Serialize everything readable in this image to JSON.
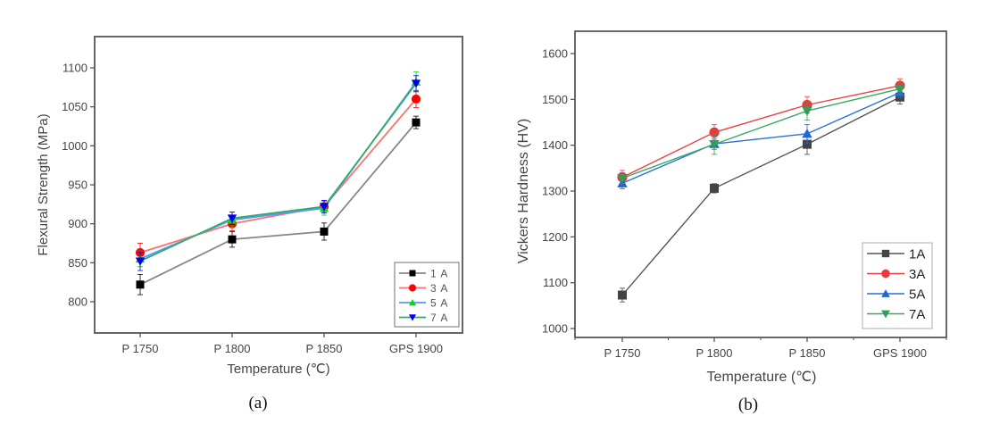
{
  "chart_data": [
    {
      "type": "line",
      "panel_label": "(a)",
      "title": "",
      "xlabel": "Temperature (℃)",
      "ylabel": "Flexural Strength (MPa)",
      "categories": [
        "P 1750",
        "P 1800",
        "P 1850",
        "GPS 1900"
      ],
      "ylim": [
        765,
        1125
      ],
      "yticks": [
        800,
        850,
        900,
        950,
        1000,
        1050,
        1100
      ],
      "grid": false,
      "legend_position": "bottom-right",
      "error_bars": true,
      "series": [
        {
          "name": "1 A",
          "marker": "square",
          "line_color": "#888888",
          "marker_color": "#000000",
          "values": [
            822,
            880,
            890,
            1030
          ],
          "errors": [
            13,
            10,
            11,
            8
          ]
        },
        {
          "name": "3 A",
          "marker": "circle",
          "line_color": "#ff7070",
          "marker_color": "#ff0000",
          "values": [
            863,
            900,
            922,
            1060
          ],
          "errors": [
            12,
            9,
            8,
            11
          ]
        },
        {
          "name": "5 A",
          "marker": "triangle-up",
          "line_color": "#5599ff",
          "marker_color": "#00dd00",
          "values": [
            855,
            905,
            920,
            1082
          ],
          "errors": [
            10,
            10,
            9,
            13
          ]
        },
        {
          "name": "7 A",
          "marker": "triangle-down",
          "line_color": "#33aa66",
          "marker_color": "#0000ee",
          "values": [
            852,
            907,
            922,
            1080
          ],
          "errors": [
            12,
            8,
            8,
            10
          ]
        }
      ]
    },
    {
      "type": "line",
      "panel_label": "(b)",
      "title": "",
      "xlabel": "Temperature (℃)",
      "ylabel": "Vickers Hardness (HV)",
      "categories": [
        "P 1750",
        "P 1800",
        "P 1850",
        "GPS 1900"
      ],
      "ylim": [
        980,
        1650
      ],
      "yticks": [
        1000,
        1100,
        1200,
        1300,
        1400,
        1500,
        1600
      ],
      "grid": false,
      "legend_position": "bottom-right",
      "error_bars": true,
      "series": [
        {
          "name": "1A",
          "marker": "square",
          "line_color": "#555555",
          "marker_color": "#444444",
          "values": [
            1073,
            1306,
            1402,
            1505
          ],
          "errors": [
            15,
            10,
            22,
            15
          ]
        },
        {
          "name": "3A",
          "marker": "circle",
          "line_color": "#e84040",
          "marker_color": "#e83a3a",
          "values": [
            1330,
            1428,
            1488,
            1530
          ],
          "errors": [
            15,
            17,
            18,
            15
          ]
        },
        {
          "name": "5A",
          "marker": "triangle-up",
          "line_color": "#2a6fdb",
          "marker_color": "#1f66d6",
          "values": [
            1317,
            1403,
            1425,
            1515
          ],
          "errors": [
            12,
            12,
            20,
            12
          ]
        },
        {
          "name": "7A",
          "marker": "triangle-down",
          "line_color": "#3aa864",
          "marker_color": "#2e9e5a",
          "values": [
            1328,
            1402,
            1475,
            1523
          ],
          "errors": [
            12,
            22,
            20,
            12
          ]
        }
      ]
    }
  ]
}
